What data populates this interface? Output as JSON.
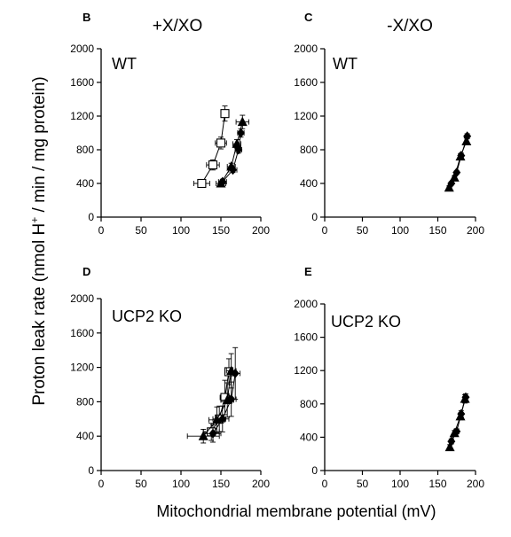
{
  "figure": {
    "ylabel": "Proton leak rate (nmol H",
    "ylabel_sup": "+",
    "ylabel_tail": " / min / mg protein)",
    "xlabel": "Mitochondrial membrane potential (mV)",
    "col_left_header": "+X/XO",
    "col_right_header": "-X/XO"
  },
  "colors": {
    "ink": "#000000",
    "open_marker_fill": "#ffffff"
  },
  "chart_data": [
    {
      "type": "scatter",
      "panel_letter": "B",
      "inset_label": "WT",
      "xlim": [
        0,
        200
      ],
      "ylim": [
        0,
        2000
      ],
      "xticks": [
        0,
        50,
        100,
        150,
        200
      ],
      "yticks": [
        0,
        400,
        800,
        1200,
        1600,
        2000
      ],
      "grid": false,
      "series": [
        {
          "marker": "square-open",
          "points": [
            [
              126,
              400
            ],
            [
              140,
              620
            ],
            [
              150,
              880
            ],
            [
              155,
              1230
            ]
          ],
          "xerr": [
            10,
            8,
            7,
            5
          ],
          "yerr": [
            30,
            60,
            70,
            90
          ]
        },
        {
          "marker": "triangle-filled",
          "points": [
            [
              150,
              400
            ],
            [
              163,
              600
            ],
            [
              170,
              870
            ],
            [
              177,
              1130
            ]
          ],
          "xerr": [
            6,
            5,
            5,
            8
          ],
          "yerr": [
            30,
            40,
            50,
            80
          ]
        },
        {
          "marker": "diamond-filled",
          "points": [
            [
              152,
              420
            ],
            [
              165,
              560
            ],
            [
              172,
              800
            ],
            [
              175,
              1000
            ]
          ],
          "xerr": [
            5,
            5,
            4,
            4
          ],
          "yerr": [
            25,
            30,
            40,
            50
          ]
        }
      ]
    },
    {
      "type": "scatter",
      "panel_letter": "C",
      "inset_label": "WT",
      "xlim": [
        0,
        200
      ],
      "ylim": [
        0,
        2000
      ],
      "xticks": [
        0,
        50,
        100,
        150,
        200
      ],
      "yticks": [
        0,
        400,
        800,
        1200,
        1600,
        2000
      ],
      "grid": false,
      "series": [
        {
          "marker": "triangle-filled",
          "points": [
            [
              165,
              350
            ],
            [
              172,
              470
            ],
            [
              180,
              720
            ],
            [
              188,
              900
            ]
          ],
          "xerr": [
            2,
            2,
            2,
            2
          ],
          "yerr": [
            20,
            20,
            30,
            40
          ]
        },
        {
          "marker": "diamond-filled",
          "points": [
            [
              168,
              400
            ],
            [
              175,
              530
            ],
            [
              181,
              730
            ],
            [
              189,
              960
            ]
          ],
          "xerr": [
            2,
            2,
            2,
            2
          ],
          "yerr": [
            20,
            20,
            30,
            30
          ]
        }
      ]
    },
    {
      "type": "scatter",
      "panel_letter": "D",
      "inset_label": "UCP2 KO",
      "xlim": [
        0,
        200
      ],
      "ylim": [
        0,
        2000
      ],
      "xticks": [
        0,
        50,
        100,
        150,
        200
      ],
      "yticks": [
        0,
        400,
        800,
        1200,
        1600,
        2000
      ],
      "grid": false,
      "series": [
        {
          "marker": "square-open",
          "points": [
            [
              138,
              450
            ],
            [
              148,
              600
            ],
            [
              155,
              850
            ],
            [
              160,
              1150
            ]
          ],
          "xerr": [
            10,
            8,
            6,
            5
          ],
          "yerr": [
            100,
            150,
            200,
            150
          ]
        },
        {
          "marker": "triangle-filled",
          "points": [
            [
              128,
              400
            ],
            [
              145,
              590
            ],
            [
              158,
              820
            ],
            [
              163,
              1160
            ]
          ],
          "xerr": [
            20,
            10,
            8,
            6
          ],
          "yerr": [
            80,
            150,
            200,
            200
          ]
        },
        {
          "marker": "diamond-filled",
          "points": [
            [
              140,
              430
            ],
            [
              152,
              600
            ],
            [
              163,
              830
            ],
            [
              168,
              1130
            ]
          ],
          "xerr": [
            10,
            8,
            6,
            6
          ],
          "yerr": [
            100,
            150,
            200,
            300
          ]
        }
      ]
    },
    {
      "type": "scatter",
      "panel_letter": "E",
      "inset_label": "UCP2 KO",
      "xlim": [
        0,
        200
      ],
      "ylim": [
        0,
        2000
      ],
      "xticks": [
        0,
        50,
        100,
        150,
        200
      ],
      "yticks": [
        0,
        400,
        800,
        1200,
        1600,
        2000
      ],
      "grid": false,
      "series": [
        {
          "marker": "triangle-filled",
          "points": [
            [
              166,
              280
            ],
            [
              172,
              450
            ],
            [
              180,
              650
            ],
            [
              186,
              860
            ]
          ],
          "xerr": [
            2,
            2,
            2,
            2
          ],
          "yerr": [
            30,
            30,
            40,
            50
          ]
        },
        {
          "marker": "diamond-filled",
          "points": [
            [
              168,
              350
            ],
            [
              175,
              470
            ],
            [
              181,
              680
            ],
            [
              187,
              880
            ]
          ],
          "xerr": [
            2,
            2,
            2,
            2
          ],
          "yerr": [
            30,
            30,
            40,
            40
          ]
        }
      ]
    }
  ]
}
